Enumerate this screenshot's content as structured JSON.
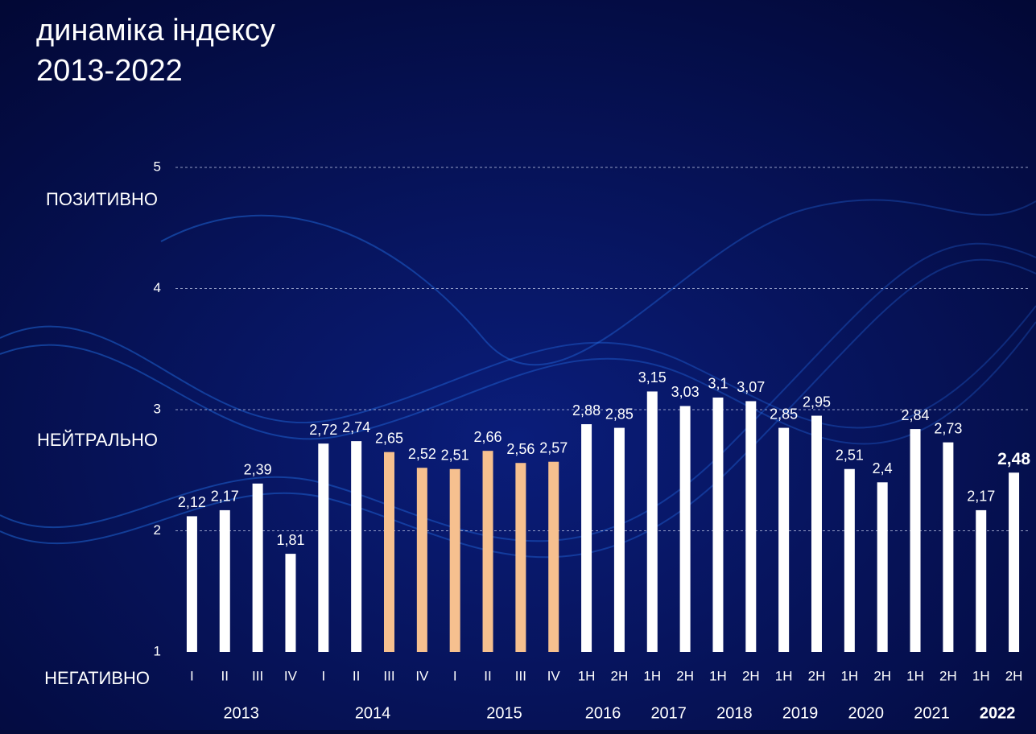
{
  "chart_data": {
    "type": "bar",
    "title": [
      "динаміка індексу",
      "2013-2022"
    ],
    "categories": [
      "I",
      "II",
      "III",
      "IV",
      "I",
      "II",
      "III",
      "IV",
      "I",
      "II",
      "III",
      "IV",
      "1H",
      "2H",
      "1H",
      "2H",
      "1H",
      "2H",
      "1H",
      "2H",
      "1H",
      "2H",
      "1H",
      "2H",
      "1H",
      "2H"
    ],
    "groups": [
      {
        "label": "2013",
        "count": 4
      },
      {
        "label": "2014",
        "count": 4
      },
      {
        "label": "2015",
        "count": 4
      },
      {
        "label": "2016",
        "count": 2
      },
      {
        "label": "2017",
        "count": 2
      },
      {
        "label": "2018",
        "count": 2
      },
      {
        "label": "2019",
        "count": 2
      },
      {
        "label": "2020",
        "count": 2
      },
      {
        "label": "2021",
        "count": 2
      },
      {
        "label": "2022",
        "count": 2
      }
    ],
    "values": [
      2.12,
      2.17,
      2.39,
      1.81,
      2.72,
      2.74,
      2.65,
      2.52,
      2.51,
      2.66,
      2.56,
      2.57,
      2.88,
      2.85,
      3.15,
      3.03,
      3.1,
      3.07,
      2.85,
      2.95,
      2.51,
      2.4,
      2.84,
      2.73,
      2.17,
      2.48
    ],
    "value_labels": [
      "2,12",
      "2,17",
      "2,39",
      "1,81",
      "2,72",
      "2,74",
      "2,65",
      "2,52",
      "2,51",
      "2,66",
      "2,56",
      "2,57",
      "2,88",
      "2,85",
      "3,15",
      "3,03",
      "3,1",
      "3,07",
      "2,85",
      "2,95",
      "2,51",
      "2,4",
      "2,84",
      "2,73",
      "2,17",
      "2,48"
    ],
    "colors": [
      "#ffffff",
      "#ffffff",
      "#ffffff",
      "#ffffff",
      "#ffffff",
      "#ffffff",
      "#f6c08f",
      "#f6c08f",
      "#f6c08f",
      "#f6c08f",
      "#f6c08f",
      "#f6c08f",
      "#ffffff",
      "#ffffff",
      "#ffffff",
      "#ffffff",
      "#ffffff",
      "#ffffff",
      "#ffffff",
      "#ffffff",
      "#ffffff",
      "#ffffff",
      "#ffffff",
      "#ffffff",
      "#ffffff",
      "#ffffff"
    ],
    "ylim": [
      1,
      5
    ],
    "yticks": [
      1,
      2,
      3,
      4,
      5
    ],
    "grid": true,
    "zone_labels": [
      "ПОЗИТИВНО",
      "НЕЙТРАЛЬНО",
      "НЕГАТИВНО"
    ]
  }
}
